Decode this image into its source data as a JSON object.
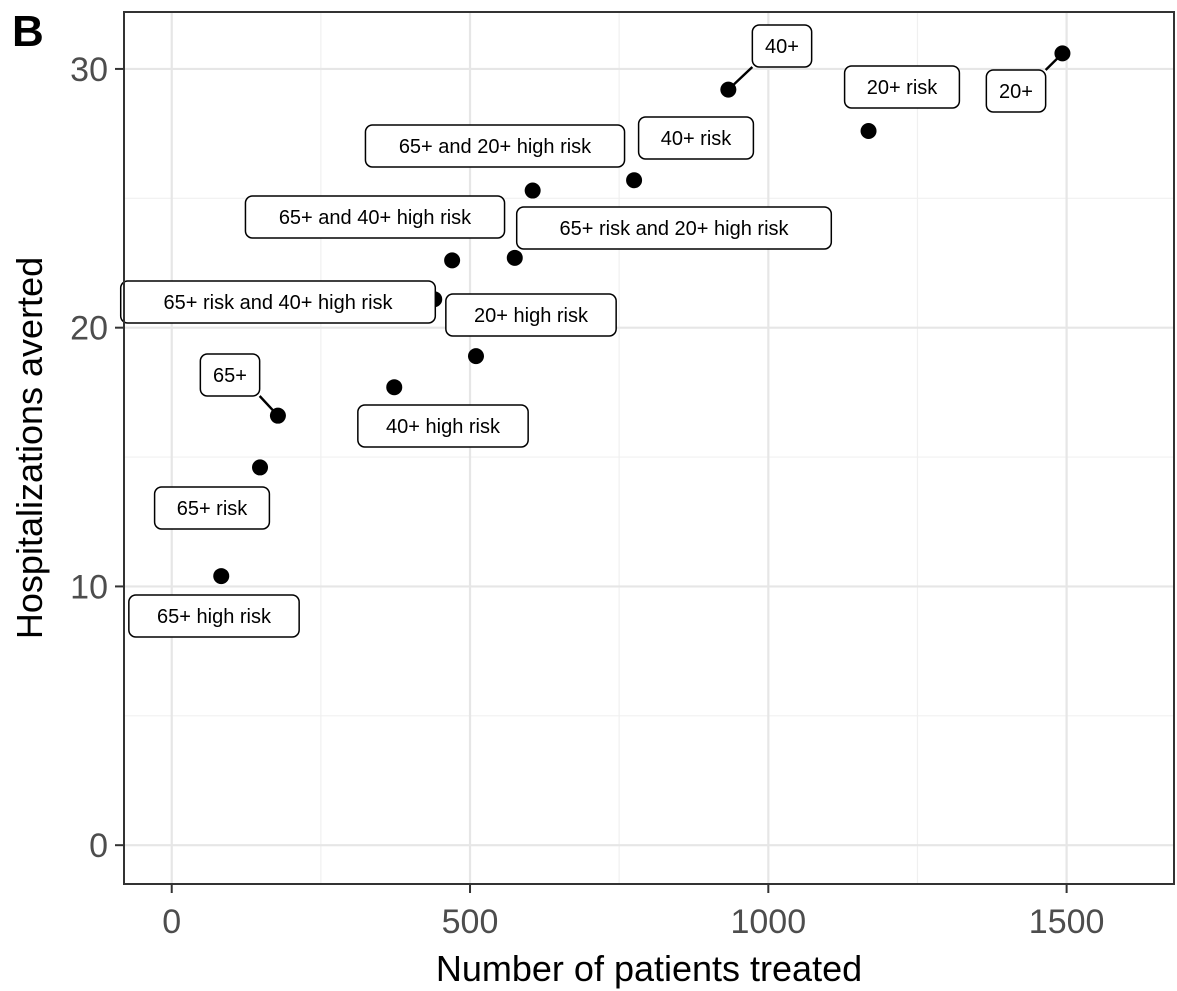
{
  "panel_letter": "B",
  "chart_data": {
    "type": "scatter",
    "xlabel": "Number of patients treated",
    "ylabel": "Hospitalizations averted",
    "xlim": [
      -80,
      1680
    ],
    "ylim": [
      -1.5,
      32.2
    ],
    "x_ticks": [
      0,
      500,
      1000,
      1500
    ],
    "y_ticks": [
      0,
      10,
      20,
      30
    ],
    "x_tick_labels": [
      "0",
      "500",
      "1000",
      "1500"
    ],
    "y_tick_labels": [
      "0",
      "10",
      "20",
      "30"
    ],
    "grid": true,
    "legend": "none",
    "marker_color": "#000000",
    "points": [
      {
        "label": "65+ high risk",
        "x": 83,
        "y": 10.4
      },
      {
        "label": "65+ risk",
        "x": 148,
        "y": 14.6
      },
      {
        "label": "65+",
        "x": 178,
        "y": 16.6
      },
      {
        "label": "40+ high risk",
        "x": 373,
        "y": 17.7
      },
      {
        "label": "65+ risk and 40+ high risk",
        "x": 440,
        "y": 21.1
      },
      {
        "label": "65+ and 40+ high risk",
        "x": 470,
        "y": 22.6
      },
      {
        "label": "20+ high risk",
        "x": 510,
        "y": 18.9
      },
      {
        "label": "65+ risk and 20+ high risk",
        "x": 575,
        "y": 22.7
      },
      {
        "label": "65+ and 20+ high risk",
        "x": 605,
        "y": 25.3
      },
      {
        "label": "40+ risk",
        "x": 775,
        "y": 25.7
      },
      {
        "label": "40+",
        "x": 933,
        "y": 29.2
      },
      {
        "label": "20+ risk",
        "x": 1168,
        "y": 27.6
      },
      {
        "label": "20+",
        "x": 1493,
        "y": 30.6
      }
    ]
  }
}
